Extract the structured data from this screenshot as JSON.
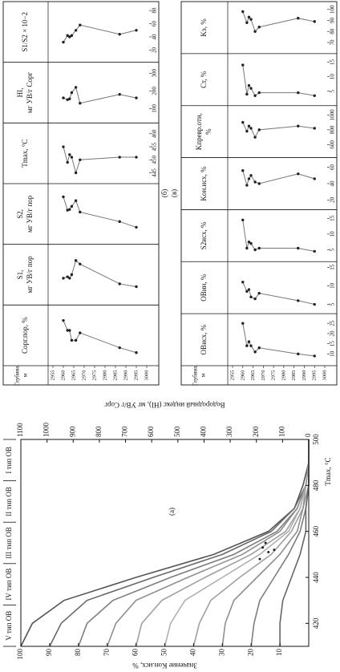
{
  "chart_data": [
    {
      "type": "line",
      "panel_label": "(а)",
      "title_x": "Tmax, °C",
      "title_y": "Значение Kон.исх, %",
      "title_y2": "Водородный индекс (HI), мг УВ/г Сорг",
      "types": [
        "V тип ОВ",
        "IV тип ОВ",
        "III тип ОВ",
        "II тип ОВ",
        "I тип ОВ"
      ],
      "x": [
        410,
        420,
        430,
        440,
        450,
        460,
        470,
        480,
        490,
        500
      ],
      "xlim": [
        410,
        500
      ],
      "xticks": [
        420,
        440,
        460,
        480,
        500
      ],
      "ylim": [
        0,
        100
      ],
      "yticks": [
        10,
        20,
        30,
        40,
        50,
        60,
        70,
        80,
        90,
        100
      ],
      "y2lim": [
        0,
        1100
      ],
      "y2ticks": [
        0,
        100,
        200,
        300,
        400,
        500,
        600,
        700,
        800,
        900,
        1000,
        1100
      ],
      "series": [
        {
          "color": "#555555",
          "values": [
            100,
            96,
            85,
            60,
            33,
            14,
            5,
            2,
            0,
            0
          ]
        },
        {
          "color": "#6a6a6a",
          "values": [
            90,
            86,
            77,
            54,
            30,
            13,
            5,
            1,
            0,
            0
          ]
        },
        {
          "color": "#7d7d7d",
          "values": [
            80,
            77,
            68,
            48,
            26,
            11,
            4,
            1,
            0,
            0
          ]
        },
        {
          "color": "#8f8f8f",
          "values": [
            70,
            67,
            60,
            42,
            23,
            10,
            4,
            1,
            0,
            0
          ]
        },
        {
          "color": "#a0a0a0",
          "values": [
            60,
            58,
            51,
            36,
            20,
            8,
            3,
            1,
            0,
            0
          ]
        },
        {
          "color": "#b0b0b0",
          "values": [
            50,
            48,
            43,
            30,
            17,
            7,
            3,
            1,
            0,
            0
          ]
        },
        {
          "color": "#a0a0a0",
          "values": [
            40,
            38,
            34,
            24,
            13,
            6,
            2,
            1,
            0,
            0
          ]
        },
        {
          "color": "#8f8f8f",
          "values": [
            30,
            29,
            26,
            18,
            10,
            4,
            2,
            0,
            0,
            0
          ]
        },
        {
          "color": "#7d7d7d",
          "values": [
            20,
            19,
            17,
            12,
            7,
            3,
            1,
            0,
            0,
            0
          ]
        },
        {
          "color": "#666666",
          "values": [
            10,
            10,
            9,
            6,
            3,
            1,
            1,
            0,
            0,
            0
          ]
        }
      ],
      "points": {
        "color": "#222222",
        "x": [
          448,
          451,
          453,
          452,
          455
        ],
        "values": [
          17,
          14,
          16,
          12,
          15
        ]
      }
    },
    {
      "type": "depth_profile",
      "panel_label": "(б)",
      "depth_title": [
        "Глубина,",
        "м"
      ],
      "ylim": [
        2955,
        3000
      ],
      "yticks": [
        2955,
        2960,
        2965,
        2970,
        2975,
        2980,
        2985,
        2990,
        2995,
        3000
      ],
      "depths": [
        2960,
        2962,
        2963,
        2964,
        2966,
        2968,
        2987,
        2995
      ],
      "color": "#222222",
      "line_color": "#777777",
      "tracks": [
        {
          "title": [
            "Сорг.пор, %"
          ],
          "xlim": [
            4,
            14
          ],
          "values": [
            12,
            10,
            10,
            8,
            8,
            9.5,
            6.5,
            5.5
          ]
        },
        {
          "title": [
            "S1,",
            "мг УВ/г пор"
          ],
          "xlim": [
            2,
            9
          ],
          "values": [
            5,
            5.2,
            5,
            5.5,
            7.5,
            7,
            4.2,
            3.8
          ]
        },
        {
          "title": [
            "S2,",
            "мг УВ/г пор"
          ],
          "xlim": [
            5,
            18
          ],
          "values": [
            16,
            12.5,
            12.7,
            13.5,
            15,
            12,
            9.5,
            8
          ]
        },
        {
          "title": [
            "Tmax, °C"
          ],
          "xlim": [
            443,
            462
          ],
          "xticks": [
            445,
            450,
            455,
            460
          ],
          "values": [
            455,
            449,
            452,
            451,
            445,
            450,
            451,
            451
          ]
        },
        {
          "title": [
            "HI,",
            "мг УВ/г Сорг"
          ],
          "xlim": [
            50,
            330
          ],
          "xticks": [
            100,
            200,
            300
          ],
          "values": [
            160,
            150,
            155,
            190,
            220,
            130,
            180,
            160
          ]
        },
        {
          "title": [
            "S1/S2 × 10−2"
          ],
          "xlim": [
            10,
            85
          ],
          "xticks": [
            20,
            40,
            60,
            80
          ],
          "values": [
            32,
            42,
            40,
            42,
            50,
            58,
            44,
            50
          ]
        }
      ]
    },
    {
      "type": "depth_profile",
      "panel_label": "(в)",
      "depth_title": [
        "Глубина,",
        "м"
      ],
      "ylim": [
        2955,
        3000
      ],
      "yticks": [
        2955,
        2960,
        2965,
        2970,
        2975,
        2980,
        2985,
        2990,
        2995,
        3000
      ],
      "depths": [
        2960,
        2962,
        2963,
        2964,
        2966,
        2968,
        2987,
        2995
      ],
      "color": "#222222",
      "line_color": "#777777",
      "tracks": [
        {
          "title": [
            "ОВисх, %"
          ],
          "xlim": [
            7,
            27
          ],
          "xticks": [
            10,
            15,
            20,
            25
          ],
          "values": [
            25,
            14,
            16,
            14,
            11,
            13,
            10,
            9
          ]
        },
        {
          "title": [
            "ОВин, %"
          ],
          "xlim": [
            4,
            15
          ],
          "xticks": [
            5,
            10,
            15
          ],
          "values": [
            11,
            8.5,
            9,
            7,
            6.5,
            8,
            6,
            5
          ]
        },
        {
          "title": [
            "S2исх, %"
          ],
          "xlim": [
            3,
            16
          ],
          "xticks": [
            5,
            10,
            15
          ],
          "values": [
            14.5,
            5.5,
            7.5,
            7,
            5,
            5.5,
            5.5,
            4.5
          ]
        },
        {
          "title": [
            "Kон.исх, %"
          ],
          "xlim": [
            15,
            65
          ],
          "xticks": [
            20,
            40,
            60
          ],
          "values": [
            56,
            38,
            46,
            50,
            42,
            40,
            52,
            46
          ]
        },
        {
          "title": [
            "Kпревр.отн,",
            "%"
          ],
          "xlim": [
            500,
            1050
          ],
          "xticks": [
            600,
            800,
            1000
          ],
          "values": [
            900,
            780,
            850,
            820,
            700,
            800,
            850,
            820
          ]
        },
        {
          "title": [
            "Ст, %"
          ],
          "xlim": [
            2,
            16
          ],
          "xticks": [
            5,
            10,
            15
          ],
          "values": [
            14,
            4,
            7,
            6,
            3.5,
            4.5,
            4.5,
            3.5
          ]
        },
        {
          "title": [
            "Kэ, %"
          ],
          "xlim": [
            65,
            102
          ],
          "xticks": [
            70,
            80,
            90,
            100
          ],
          "values": [
            98,
            88,
            93,
            91,
            80,
            84,
            92,
            89
          ]
        }
      ]
    }
  ]
}
